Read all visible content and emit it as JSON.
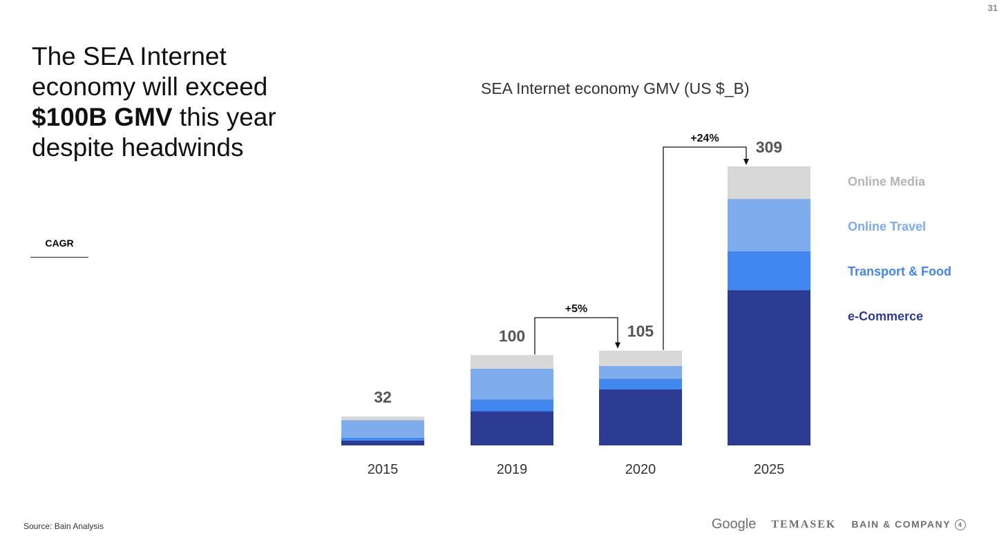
{
  "page_number": "31",
  "headline": {
    "line1": "The SEA Internet economy will exceed",
    "strong": "$100B GMV",
    "line2": " this year despite headwinds"
  },
  "cagr_label": "CAGR",
  "source": "Source: Bain Analysis",
  "logos": {
    "google": "Google",
    "temasek": "TEMASEK",
    "bain": "BAIN & COMPANY",
    "bain_mark": "4"
  },
  "colors": {
    "ecommerce": "#2c3c92",
    "transport_food": "#4287f0",
    "online_travel": "#7eaced",
    "online_media": "#d8d8d8",
    "total_label": "#555555",
    "axis_label": "#333333"
  },
  "chart_data": {
    "type": "bar",
    "stacked": true,
    "title": "SEA Internet economy GMV (US $_B)",
    "categories": [
      "2015",
      "2019",
      "2020",
      "2025"
    ],
    "series": [
      {
        "name": "e-Commerce",
        "values": [
          5.5,
          38,
          62,
          172
        ]
      },
      {
        "name": "Transport & Food",
        "values": [
          3,
          13,
          12,
          43
        ]
      },
      {
        "name": "Online Travel",
        "values": [
          19.5,
          34,
          14,
          58
        ]
      },
      {
        "name": "Online Media",
        "values": [
          4,
          15,
          17,
          36
        ]
      }
    ],
    "totals": [
      32,
      100,
      105,
      309
    ],
    "annotations": [
      {
        "label": "+5%",
        "from": "2019",
        "to": "2020"
      },
      {
        "label": "+24%",
        "from": "2020",
        "to": "2025"
      }
    ],
    "legend": {
      "placement": "right",
      "order": [
        "Online Media",
        "Online Travel",
        "Transport & Food",
        "e-Commerce"
      ]
    },
    "grid": false,
    "ylim": [
      0,
      309
    ]
  }
}
